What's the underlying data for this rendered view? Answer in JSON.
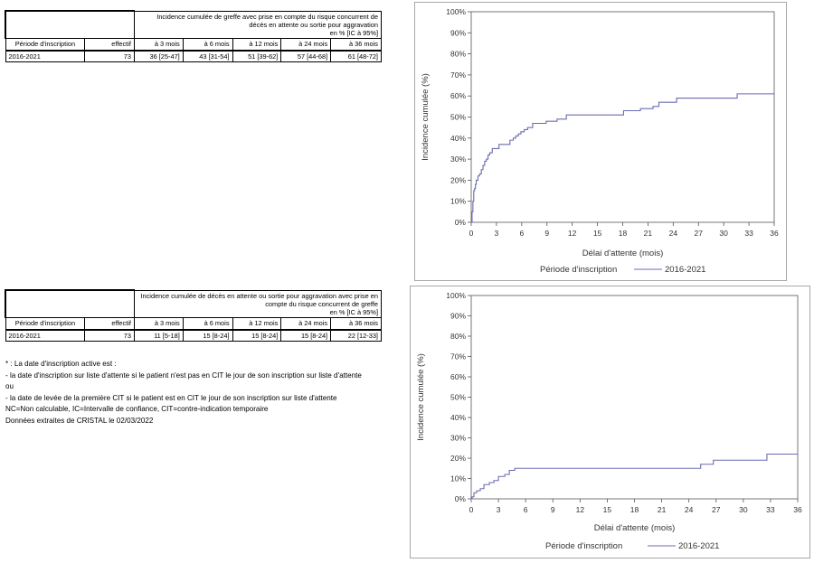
{
  "table1": {
    "header": "Incidence cumulée de greffe avec prise en compte du risque concurrent de décès en attente ou sortie pour aggravation",
    "header_unit": "en % [IC à 95%]",
    "columns": [
      "Période d'inscription",
      "effectif",
      "à 3 mois",
      "à 6 mois",
      "à 12 mois",
      "à 24 mois",
      "à 36 mois"
    ],
    "row": [
      "2016-2021",
      "73",
      "36 [25-47]",
      "43 [31-54]",
      "51 [39-62]",
      "57 [44-68]",
      "61 [48-72]"
    ]
  },
  "table2": {
    "header": "Incidence cumulée de décès en attente ou sortie pour aggravation avec prise en compte du risque concurrent de greffe",
    "header_unit": "en % [IC à 95%]",
    "columns": [
      "Période d'inscription",
      "effectif",
      "à 3 mois",
      "à 6 mois",
      "à 12 mois",
      "à 24 mois",
      "à 36 mois"
    ],
    "row": [
      "2016-2021",
      "73",
      "11 [5-18]",
      "15 [8-24]",
      "15 [8-24]",
      "15 [8-24]",
      "22 [12-33]"
    ]
  },
  "notes": {
    "line1": "* : La date d'inscription active est :",
    "line2": "- la date d'inscription sur liste d'attente si le patient n'est pas en CIT le jour de son inscription sur liste d'attente",
    "line3": "ou",
    "line4": "- la date de levée de la première CIT si le patient est en CIT le jour de son inscription sur liste d'attente",
    "line5": "NC=Non calculable, IC=Intervalle de confiance, CIT=contre-indication temporaire",
    "line6": "Données extraites de CRISTAL le 02/03/2022"
  },
  "chart_data": [
    {
      "type": "line",
      "step": true,
      "xlabel": "Délai d'attente (mois)",
      "ylabel": "Incidence cumulée (%)",
      "xlim": [
        0,
        36
      ],
      "ylim": [
        0,
        100
      ],
      "x_ticks": [
        0,
        3,
        6,
        9,
        12,
        15,
        18,
        21,
        24,
        27,
        30,
        33,
        36
      ],
      "y_ticks": [
        "0%",
        "10%",
        "20%",
        "30%",
        "40%",
        "50%",
        "60%",
        "70%",
        "80%",
        "90%",
        "100%"
      ],
      "legend_title": "Période d'inscription",
      "legend_position": "bottom",
      "color": "#6b6bb0",
      "series": [
        {
          "name": "2016-2021",
          "x": [
            0,
            0.1,
            0.2,
            0.3,
            0.4,
            0.5,
            0.6,
            0.8,
            1.0,
            1.2,
            1.4,
            1.6,
            1.8,
            2.0,
            2.2,
            2.5,
            3.3,
            4.6,
            5.0,
            5.3,
            5.6,
            5.9,
            6.3,
            6.7,
            7.3,
            8.9,
            10.2,
            11.3,
            18.1,
            20.1,
            21.6,
            22.3,
            24.4,
            31.6,
            36
          ],
          "y": [
            0,
            5,
            10,
            15,
            16,
            18,
            20,
            22,
            23,
            25,
            27,
            29,
            30,
            32,
            33,
            35,
            37,
            39,
            40,
            41,
            42,
            43,
            44,
            45,
            47,
            48,
            49,
            51,
            53,
            54,
            55,
            57,
            59,
            61,
            61
          ]
        }
      ]
    },
    {
      "type": "line",
      "step": true,
      "xlabel": "Délai d'attente (mois)",
      "ylabel": "Incidence cumulée (%)",
      "xlim": [
        0,
        36
      ],
      "ylim": [
        0,
        100
      ],
      "x_ticks": [
        0,
        3,
        6,
        9,
        12,
        15,
        18,
        21,
        24,
        27,
        30,
        33,
        36
      ],
      "y_ticks": [
        "0%",
        "10%",
        "20%",
        "30%",
        "40%",
        "50%",
        "60%",
        "70%",
        "80%",
        "90%",
        "100%"
      ],
      "legend_title": "Période d'inscription",
      "legend_position": "bottom",
      "color": "#6b6bb0",
      "series": [
        {
          "name": "2016-2021",
          "x": [
            0,
            0.1,
            0.3,
            0.6,
            1.0,
            1.4,
            2.0,
            2.5,
            3.0,
            3.7,
            4.2,
            4.8,
            25.3,
            26.7,
            32.6,
            36
          ],
          "y": [
            0,
            1,
            3,
            4,
            5,
            7,
            8,
            9,
            11,
            12,
            14,
            15,
            17,
            19,
            22,
            22
          ]
        }
      ]
    }
  ]
}
